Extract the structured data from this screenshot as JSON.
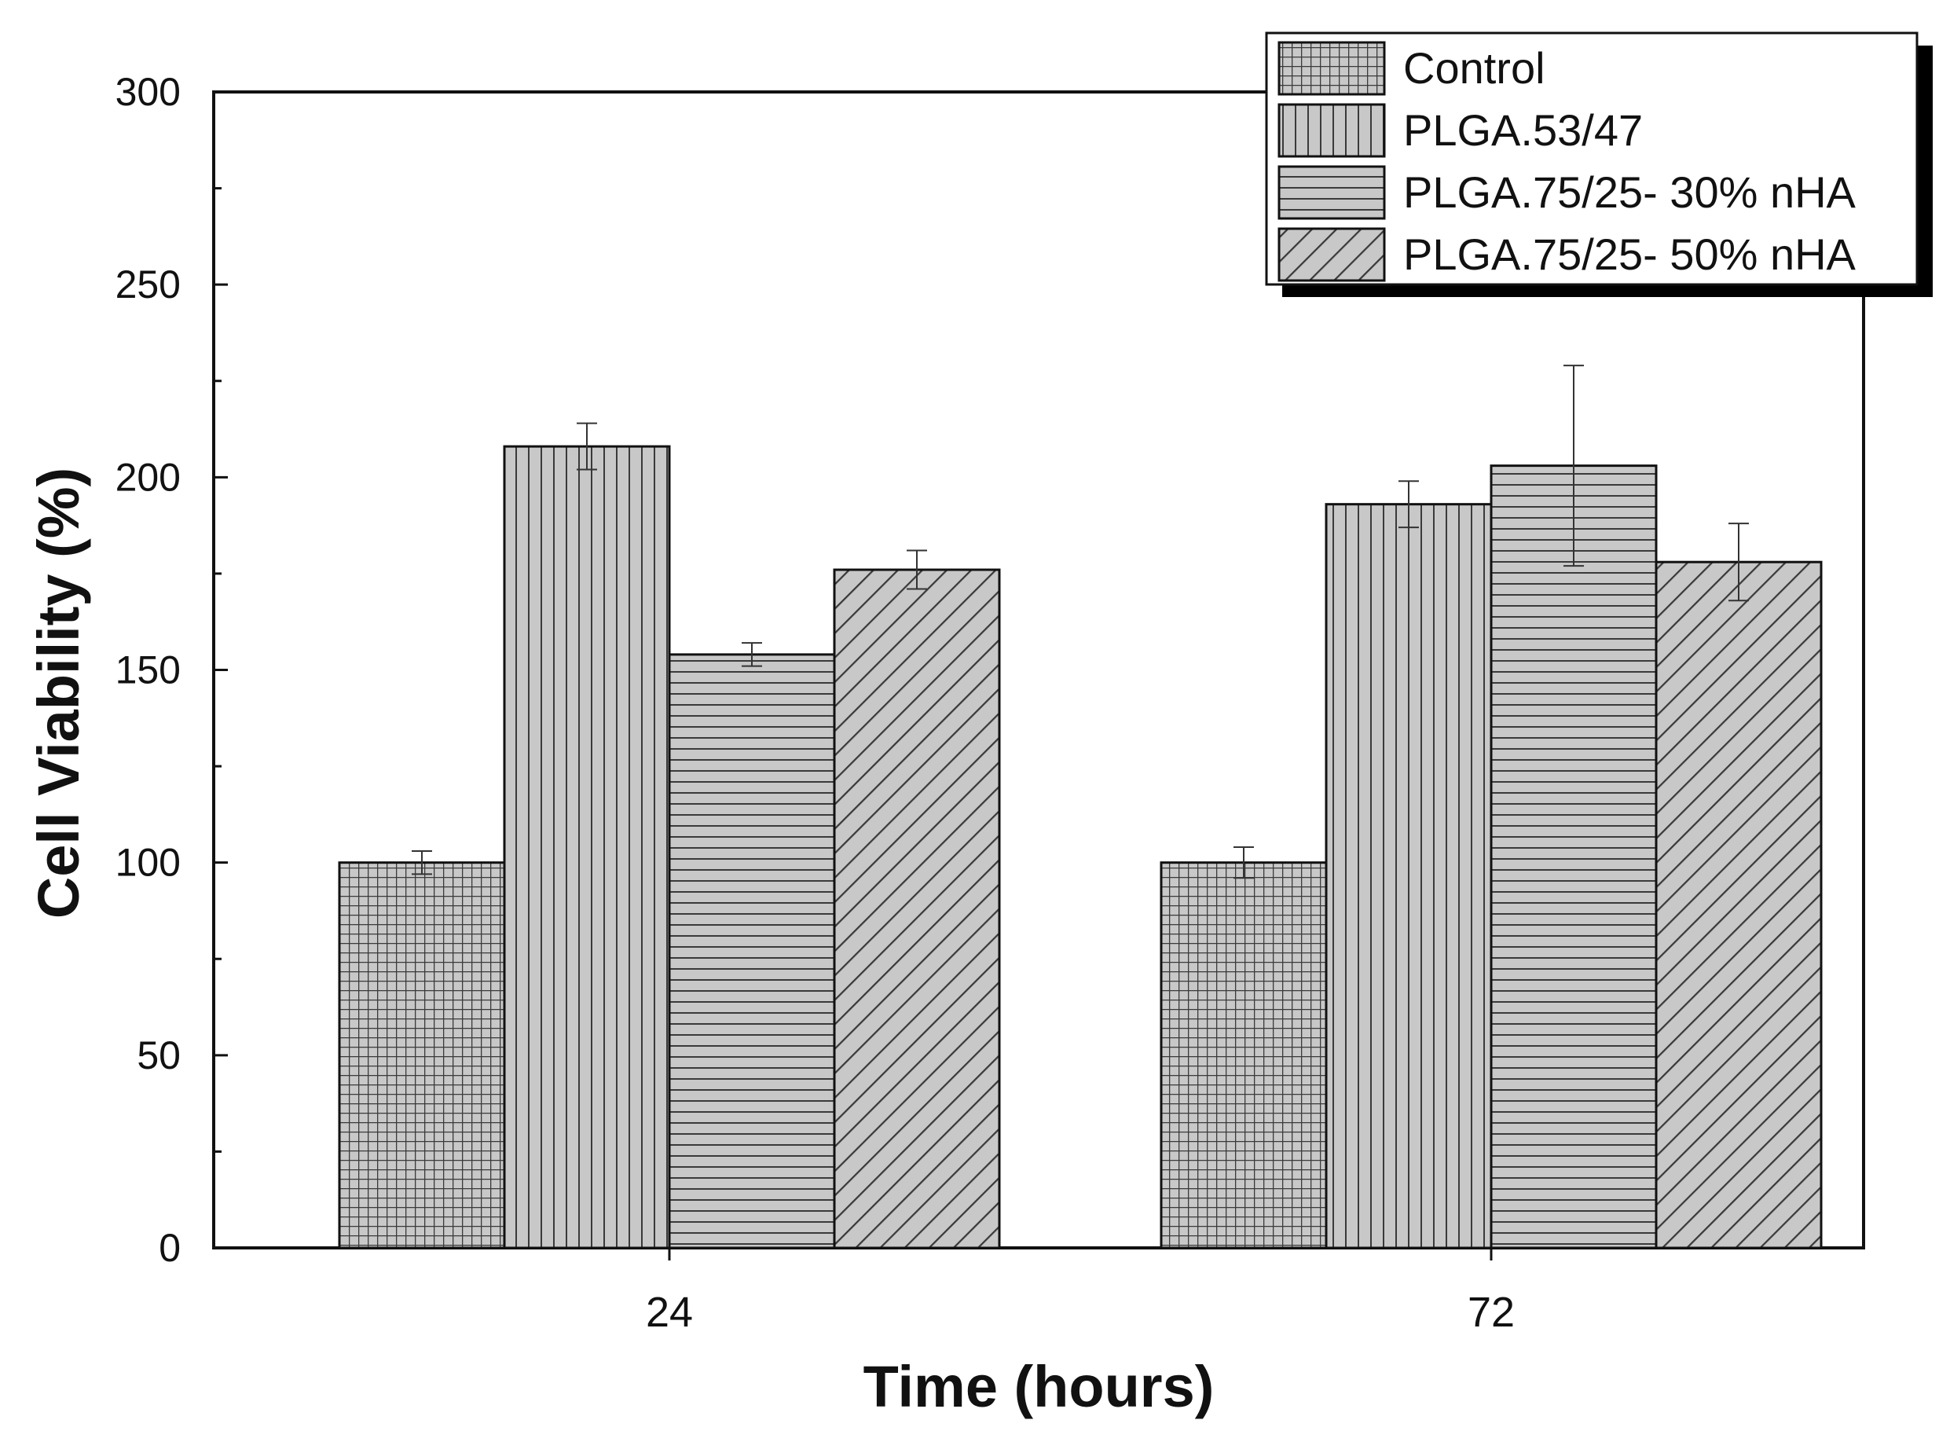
{
  "chart_data": {
    "type": "bar",
    "title": "",
    "xlabel": "Time (hours)",
    "ylabel": "Cell Viability (%)",
    "ylim": [
      0,
      300
    ],
    "yticks": [
      0,
      50,
      100,
      150,
      200,
      250,
      300
    ],
    "categories": [
      "24",
      "72"
    ],
    "grid": false,
    "legend_position": "top-right",
    "series": [
      {
        "name": "Control",
        "pattern": "grid",
        "values": [
          100,
          100
        ],
        "errors": [
          3,
          4
        ]
      },
      {
        "name": "PLGA.53/47",
        "pattern": "vertical-lines",
        "values": [
          208,
          193
        ],
        "errors": [
          6,
          6
        ]
      },
      {
        "name": "PLGA.75/25- 30% nHA",
        "pattern": "horizontal-lines",
        "values": [
          154,
          203
        ],
        "errors": [
          3,
          26
        ]
      },
      {
        "name": "PLGA.75/25- 50% nHA",
        "pattern": "diagonal-lines",
        "values": [
          176,
          178
        ],
        "errors": [
          5,
          10
        ]
      }
    ],
    "colors": {
      "bar_fill": "#c8c8c8",
      "hatch": "#3a3a3a",
      "stroke": "#111111"
    }
  }
}
